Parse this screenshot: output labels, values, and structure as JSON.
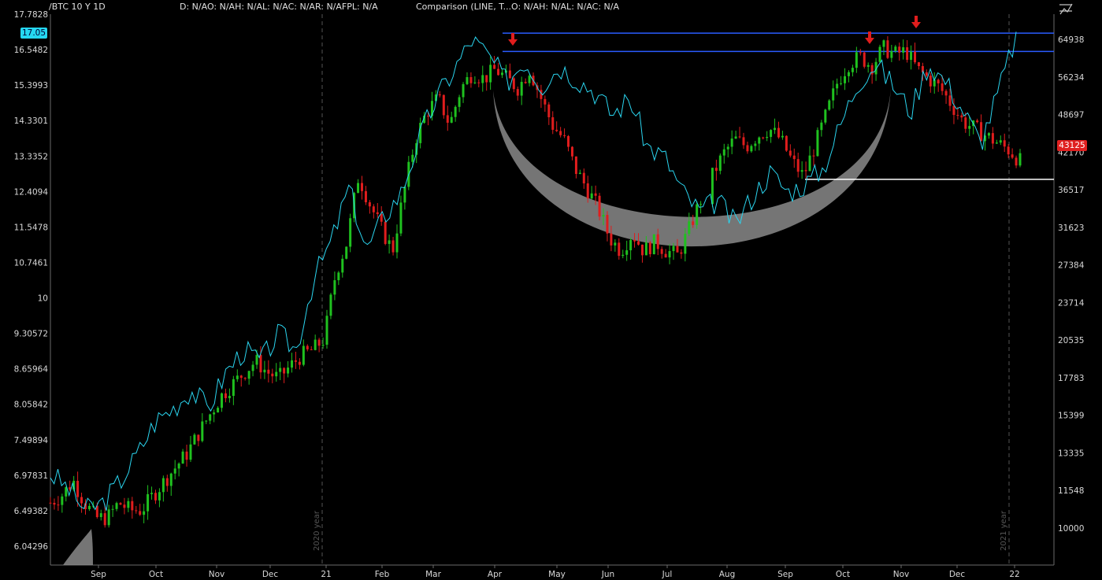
{
  "header": {
    "symbol": "/BTC 10 Y 1D",
    "ohlc": "D: N/AO: N/AH: N/AL: N/AC: N/AR: N/AFPL: N/A",
    "comparison": "Comparison (LINE, T...",
    "comparison_ohlc": "O: N/AH: N/AL: N/AC: N/A"
  },
  "badges": {
    "left_value": "17.05",
    "right_value": "43125",
    "left_color": "#25d7f0",
    "right_color": "#e02020"
  },
  "colors": {
    "up": "#1fc11f",
    "down": "#e01d1d",
    "comparison": "#2ad4ee",
    "resistance": "#2a5cff",
    "support": "#ffffff",
    "cup": "#8a8a8a"
  },
  "chart_data": {
    "type": "line",
    "left_axis": {
      "ticks": [
        "17.7828",
        "16.5482",
        "15.3993",
        "14.3301",
        "13.3352",
        "12.4094",
        "11.5478",
        "10.7461",
        "10",
        "9.30572",
        "8.65964",
        "8.05842",
        "7.49894",
        "6.97831",
        "6.49382",
        "6.04296"
      ],
      "scale": "log"
    },
    "right_axis": {
      "ticks": [
        "64938",
        "56234",
        "48697",
        "42170",
        "36517",
        "31623",
        "27384",
        "23714",
        "20535",
        "17783",
        "15399",
        "13335",
        "11548",
        "10000"
      ],
      "scale": "log"
    },
    "x_labels": [
      "Sep",
      "Oct",
      "Nov",
      "Dec",
      "21",
      "Feb",
      "Mar",
      "Apr",
      "May",
      "Jun",
      "Jul",
      "Aug",
      "Sep",
      "Oct",
      "Nov",
      "Dec",
      "22"
    ],
    "year_labels": [
      "2020 year",
      "2021 year"
    ],
    "resistance_levels": [
      66500,
      62000
    ],
    "support_level": 38000,
    "series": [
      {
        "kind": "candles",
        "values": [
          6.6,
          6.7,
          6.9,
          6.6,
          6.4,
          6.4,
          6.6,
          6.5,
          6.5,
          6.7,
          6.9,
          7.1,
          7.3,
          7.6,
          7.9,
          8.2,
          8.4,
          8.6,
          8.8,
          8.6,
          8.5,
          8.7,
          8.9,
          9.0,
          9.2,
          10.5,
          11.2,
          12.8,
          12.1,
          11.5,
          11.0,
          12.4,
          13.8,
          14.6,
          15.0,
          14.2,
          15.3,
          15.8,
          15.6,
          15.9,
          15.6,
          15.3,
          15.9,
          15.0,
          14.2,
          13.8,
          13.0,
          12.5,
          12.0,
          11.3,
          11.0,
          11.4,
          11.0,
          11.2,
          11.0,
          10.9,
          11.5,
          12.2,
          12.8,
          13.4,
          13.8,
          13.6,
          13.9,
          14.1,
          13.8,
          13.2,
          12.8,
          13.6,
          14.5,
          15.5,
          16.1,
          16.3,
          16.0,
          16.6,
          16.4,
          16.5,
          15.9,
          15.6,
          15.3,
          14.8,
          14.3,
          14.1,
          13.9,
          13.7,
          13.5,
          13.2
        ]
      },
      {
        "kind": "comparison",
        "values": [
          7.0,
          6.8,
          6.5,
          6.6,
          6.9,
          7.3,
          7.8,
          8.0,
          8.3,
          8.0,
          8.6,
          9.0,
          8.8,
          9.3,
          9.0,
          10.4,
          11.2,
          12.5,
          11.0,
          11.8,
          12.4,
          13.8,
          15.0,
          15.9,
          16.9,
          16.3,
          15.5,
          16.2,
          15.4,
          16.0,
          15.6,
          15.2,
          14.5,
          15.0,
          13.6,
          13.3,
          12.4,
          11.9,
          12.2,
          11.6,
          12.3,
          12.9,
          12.4,
          12.6,
          13.0,
          14.2,
          15.5,
          16.1,
          15.4,
          14.6,
          16.1,
          15.5,
          14.6,
          13.7,
          15.2,
          17.0
        ]
      }
    ]
  }
}
